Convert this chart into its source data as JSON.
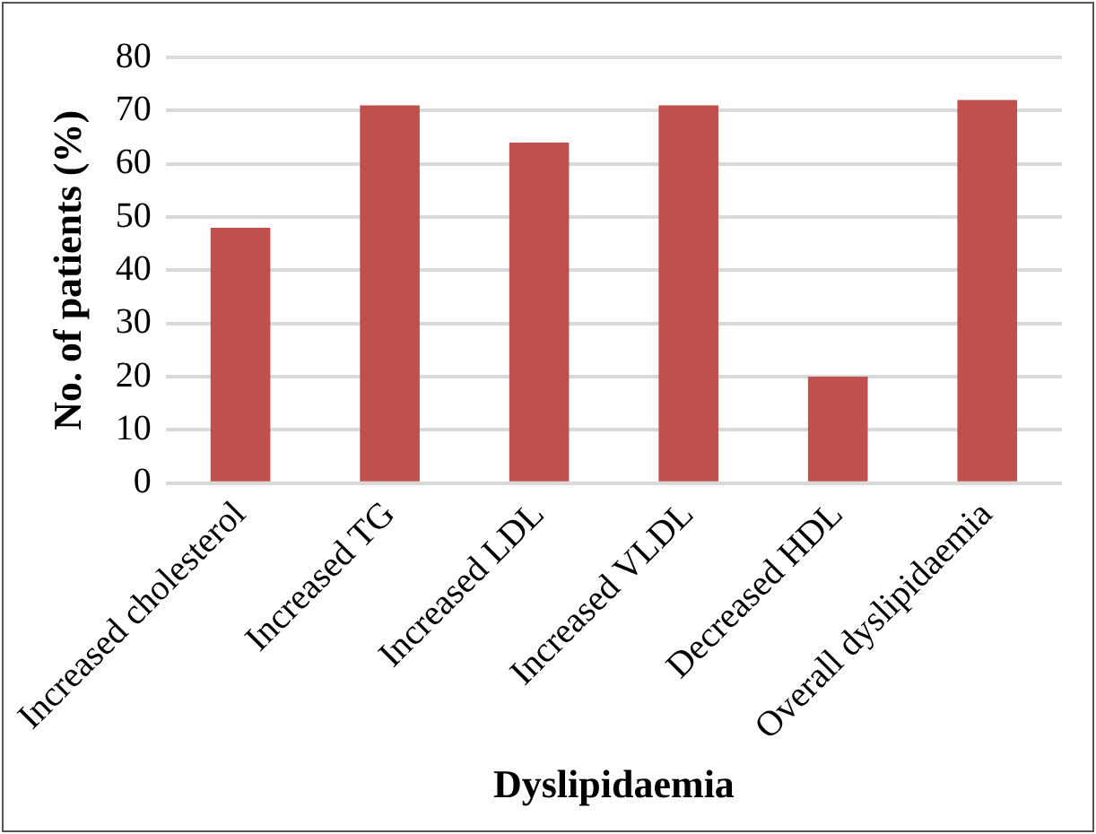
{
  "chart_data": {
    "type": "bar",
    "xlabel": "Dyslipidaemia",
    "ylabel": "No. of patients (%)",
    "categories": [
      "Increased cholesterol",
      "Increased TG",
      "Increased LDL",
      "Increased VLDL",
      "Decreased HDL",
      "Overall dyslipidaemia"
    ],
    "values": [
      48,
      71,
      64,
      71,
      20,
      72
    ],
    "color": "#c0504d",
    "ylim": [
      0,
      80
    ],
    "yticks": [
      0,
      10,
      20,
      30,
      40,
      50,
      60,
      70,
      80
    ],
    "grid": "y",
    "legend": false
  }
}
